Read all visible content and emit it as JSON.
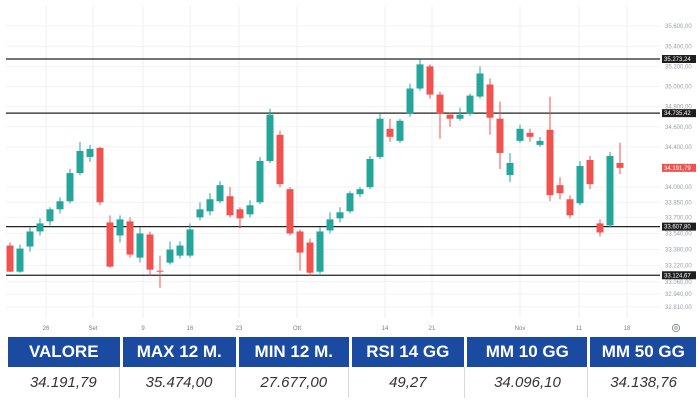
{
  "chart_data": {
    "type": "candlestick",
    "y_ticks": [
      "35.600,00",
      "35.400,00",
      "35.200,00",
      "35.000,00",
      "34.800,00",
      "34.600,00",
      "34.400,00",
      "34.000,00",
      "33.850,00",
      "33.700,00",
      "33.540,00",
      "33.380,00",
      "33.220,00",
      "33.060,00",
      "32.940,00",
      "32.810,00"
    ],
    "x_ticks": [
      "26",
      "Set",
      "9",
      "16",
      "23",
      "Ott",
      "14",
      "21",
      "Nov",
      "11",
      "18"
    ],
    "levels": [
      {
        "label": "35.273,24",
        "value": 35273.24,
        "style": "line"
      },
      {
        "label": "34.735,42",
        "value": 34735.42,
        "style": "line"
      },
      {
        "label": "34.191,79",
        "value": 34191.79,
        "style": "last"
      },
      {
        "label": "33.607,80",
        "value": 33607.8,
        "style": "line"
      },
      {
        "label": "33.124,67",
        "value": 33124.67,
        "style": "line"
      }
    ],
    "ylim": [
      32700,
      35800
    ],
    "colors": {
      "up": "#26a69a",
      "down": "#ef5350",
      "level_line": "#222222",
      "last_price": "#ef5350"
    },
    "candles": [
      {
        "o": 33420,
        "h": 33450,
        "l": 33160,
        "c": 33160
      },
      {
        "o": 33160,
        "h": 33430,
        "l": 33150,
        "c": 33390
      },
      {
        "o": 33410,
        "h": 33600,
        "l": 33360,
        "c": 33560
      },
      {
        "o": 33560,
        "h": 33690,
        "l": 33520,
        "c": 33640
      },
      {
        "o": 33660,
        "h": 33800,
        "l": 33620,
        "c": 33780
      },
      {
        "o": 33780,
        "h": 33900,
        "l": 33740,
        "c": 33860
      },
      {
        "o": 33860,
        "h": 34180,
        "l": 33840,
        "c": 34140
      },
      {
        "o": 34140,
        "h": 34450,
        "l": 34120,
        "c": 34360
      },
      {
        "o": 34300,
        "h": 34420,
        "l": 34250,
        "c": 34380
      },
      {
        "o": 34390,
        "h": 34400,
        "l": 33820,
        "c": 33850
      },
      {
        "o": 33650,
        "h": 33720,
        "l": 33200,
        "c": 33210
      },
      {
        "o": 33520,
        "h": 33720,
        "l": 33450,
        "c": 33680
      },
      {
        "o": 33660,
        "h": 33700,
        "l": 33300,
        "c": 33330
      },
      {
        "o": 33300,
        "h": 33600,
        "l": 33250,
        "c": 33540
      },
      {
        "o": 33530,
        "h": 33560,
        "l": 33120,
        "c": 33180
      },
      {
        "o": 33170,
        "h": 33320,
        "l": 33000,
        "c": 33160
      },
      {
        "o": 33250,
        "h": 33460,
        "l": 33230,
        "c": 33380
      },
      {
        "o": 33320,
        "h": 33460,
        "l": 33290,
        "c": 33420
      },
      {
        "o": 33320,
        "h": 33640,
        "l": 33300,
        "c": 33580
      },
      {
        "o": 33700,
        "h": 33850,
        "l": 33670,
        "c": 33780
      },
      {
        "o": 33760,
        "h": 33940,
        "l": 33720,
        "c": 33880
      },
      {
        "o": 33860,
        "h": 34060,
        "l": 33840,
        "c": 34020
      },
      {
        "o": 33910,
        "h": 34000,
        "l": 33700,
        "c": 33720
      },
      {
        "o": 33780,
        "h": 33800,
        "l": 33590,
        "c": 33690
      },
      {
        "o": 33730,
        "h": 33870,
        "l": 33700,
        "c": 33820
      },
      {
        "o": 33850,
        "h": 34300,
        "l": 33830,
        "c": 34260
      },
      {
        "o": 34260,
        "h": 34780,
        "l": 34240,
        "c": 34720
      },
      {
        "o": 34520,
        "h": 34560,
        "l": 34000,
        "c": 34030
      },
      {
        "o": 33980,
        "h": 34000,
        "l": 33520,
        "c": 33540
      },
      {
        "o": 33560,
        "h": 33580,
        "l": 33170,
        "c": 33350
      },
      {
        "o": 33450,
        "h": 33490,
        "l": 33120,
        "c": 33150
      },
      {
        "o": 33160,
        "h": 33600,
        "l": 33140,
        "c": 33560
      },
      {
        "o": 33570,
        "h": 33750,
        "l": 33540,
        "c": 33680
      },
      {
        "o": 33690,
        "h": 33800,
        "l": 33650,
        "c": 33750
      },
      {
        "o": 33760,
        "h": 33960,
        "l": 33740,
        "c": 33940
      },
      {
        "o": 33930,
        "h": 34000,
        "l": 33900,
        "c": 33980
      },
      {
        "o": 34000,
        "h": 34310,
        "l": 33980,
        "c": 34280
      },
      {
        "o": 34300,
        "h": 34730,
        "l": 34280,
        "c": 34680
      },
      {
        "o": 34580,
        "h": 34680,
        "l": 34450,
        "c": 34500
      },
      {
        "o": 34460,
        "h": 34680,
        "l": 34440,
        "c": 34660
      },
      {
        "o": 34730,
        "h": 35030,
        "l": 34700,
        "c": 34980
      },
      {
        "o": 34980,
        "h": 35270,
        "l": 34960,
        "c": 35220
      },
      {
        "o": 35200,
        "h": 35220,
        "l": 34880,
        "c": 34920
      },
      {
        "o": 34920,
        "h": 34950,
        "l": 34480,
        "c": 34730
      },
      {
        "o": 34720,
        "h": 34740,
        "l": 34600,
        "c": 34680
      },
      {
        "o": 34680,
        "h": 34790,
        "l": 34660,
        "c": 34720
      },
      {
        "o": 34730,
        "h": 34930,
        "l": 34710,
        "c": 34910
      },
      {
        "o": 34900,
        "h": 35200,
        "l": 34880,
        "c": 35130
      },
      {
        "o": 35020,
        "h": 35080,
        "l": 34520,
        "c": 34690
      },
      {
        "o": 34680,
        "h": 34850,
        "l": 34180,
        "c": 34340
      },
      {
        "o": 34120,
        "h": 34340,
        "l": 34050,
        "c": 34240
      },
      {
        "o": 34460,
        "h": 34620,
        "l": 34440,
        "c": 34580
      },
      {
        "o": 34540,
        "h": 34580,
        "l": 34450,
        "c": 34500
      },
      {
        "o": 34420,
        "h": 34500,
        "l": 34400,
        "c": 34460
      },
      {
        "o": 34570,
        "h": 34900,
        "l": 33860,
        "c": 33920
      },
      {
        "o": 34020,
        "h": 34100,
        "l": 33880,
        "c": 33940
      },
      {
        "o": 33880,
        "h": 33920,
        "l": 33690,
        "c": 33720
      },
      {
        "o": 33840,
        "h": 34260,
        "l": 33820,
        "c": 34210
      },
      {
        "o": 34270,
        "h": 34310,
        "l": 33980,
        "c": 34030
      },
      {
        "o": 33640,
        "h": 33680,
        "l": 33510,
        "c": 33550
      },
      {
        "o": 33620,
        "h": 34350,
        "l": 33600,
        "c": 34310
      },
      {
        "o": 34240,
        "h": 34440,
        "l": 34130,
        "c": 34191.79
      }
    ]
  },
  "stats": {
    "headers": [
      "VALORE",
      "MAX 12 M.",
      "MIN 12 M.",
      "RSI 14 GG",
      "MM 10 GG",
      "MM 50 GG"
    ],
    "values": [
      "34.191,79",
      "35.474,00",
      "27.677,00",
      "49,27",
      "34.096,10",
      "34.138,76"
    ]
  },
  "controls": {
    "settings_icon": "gear-icon"
  }
}
